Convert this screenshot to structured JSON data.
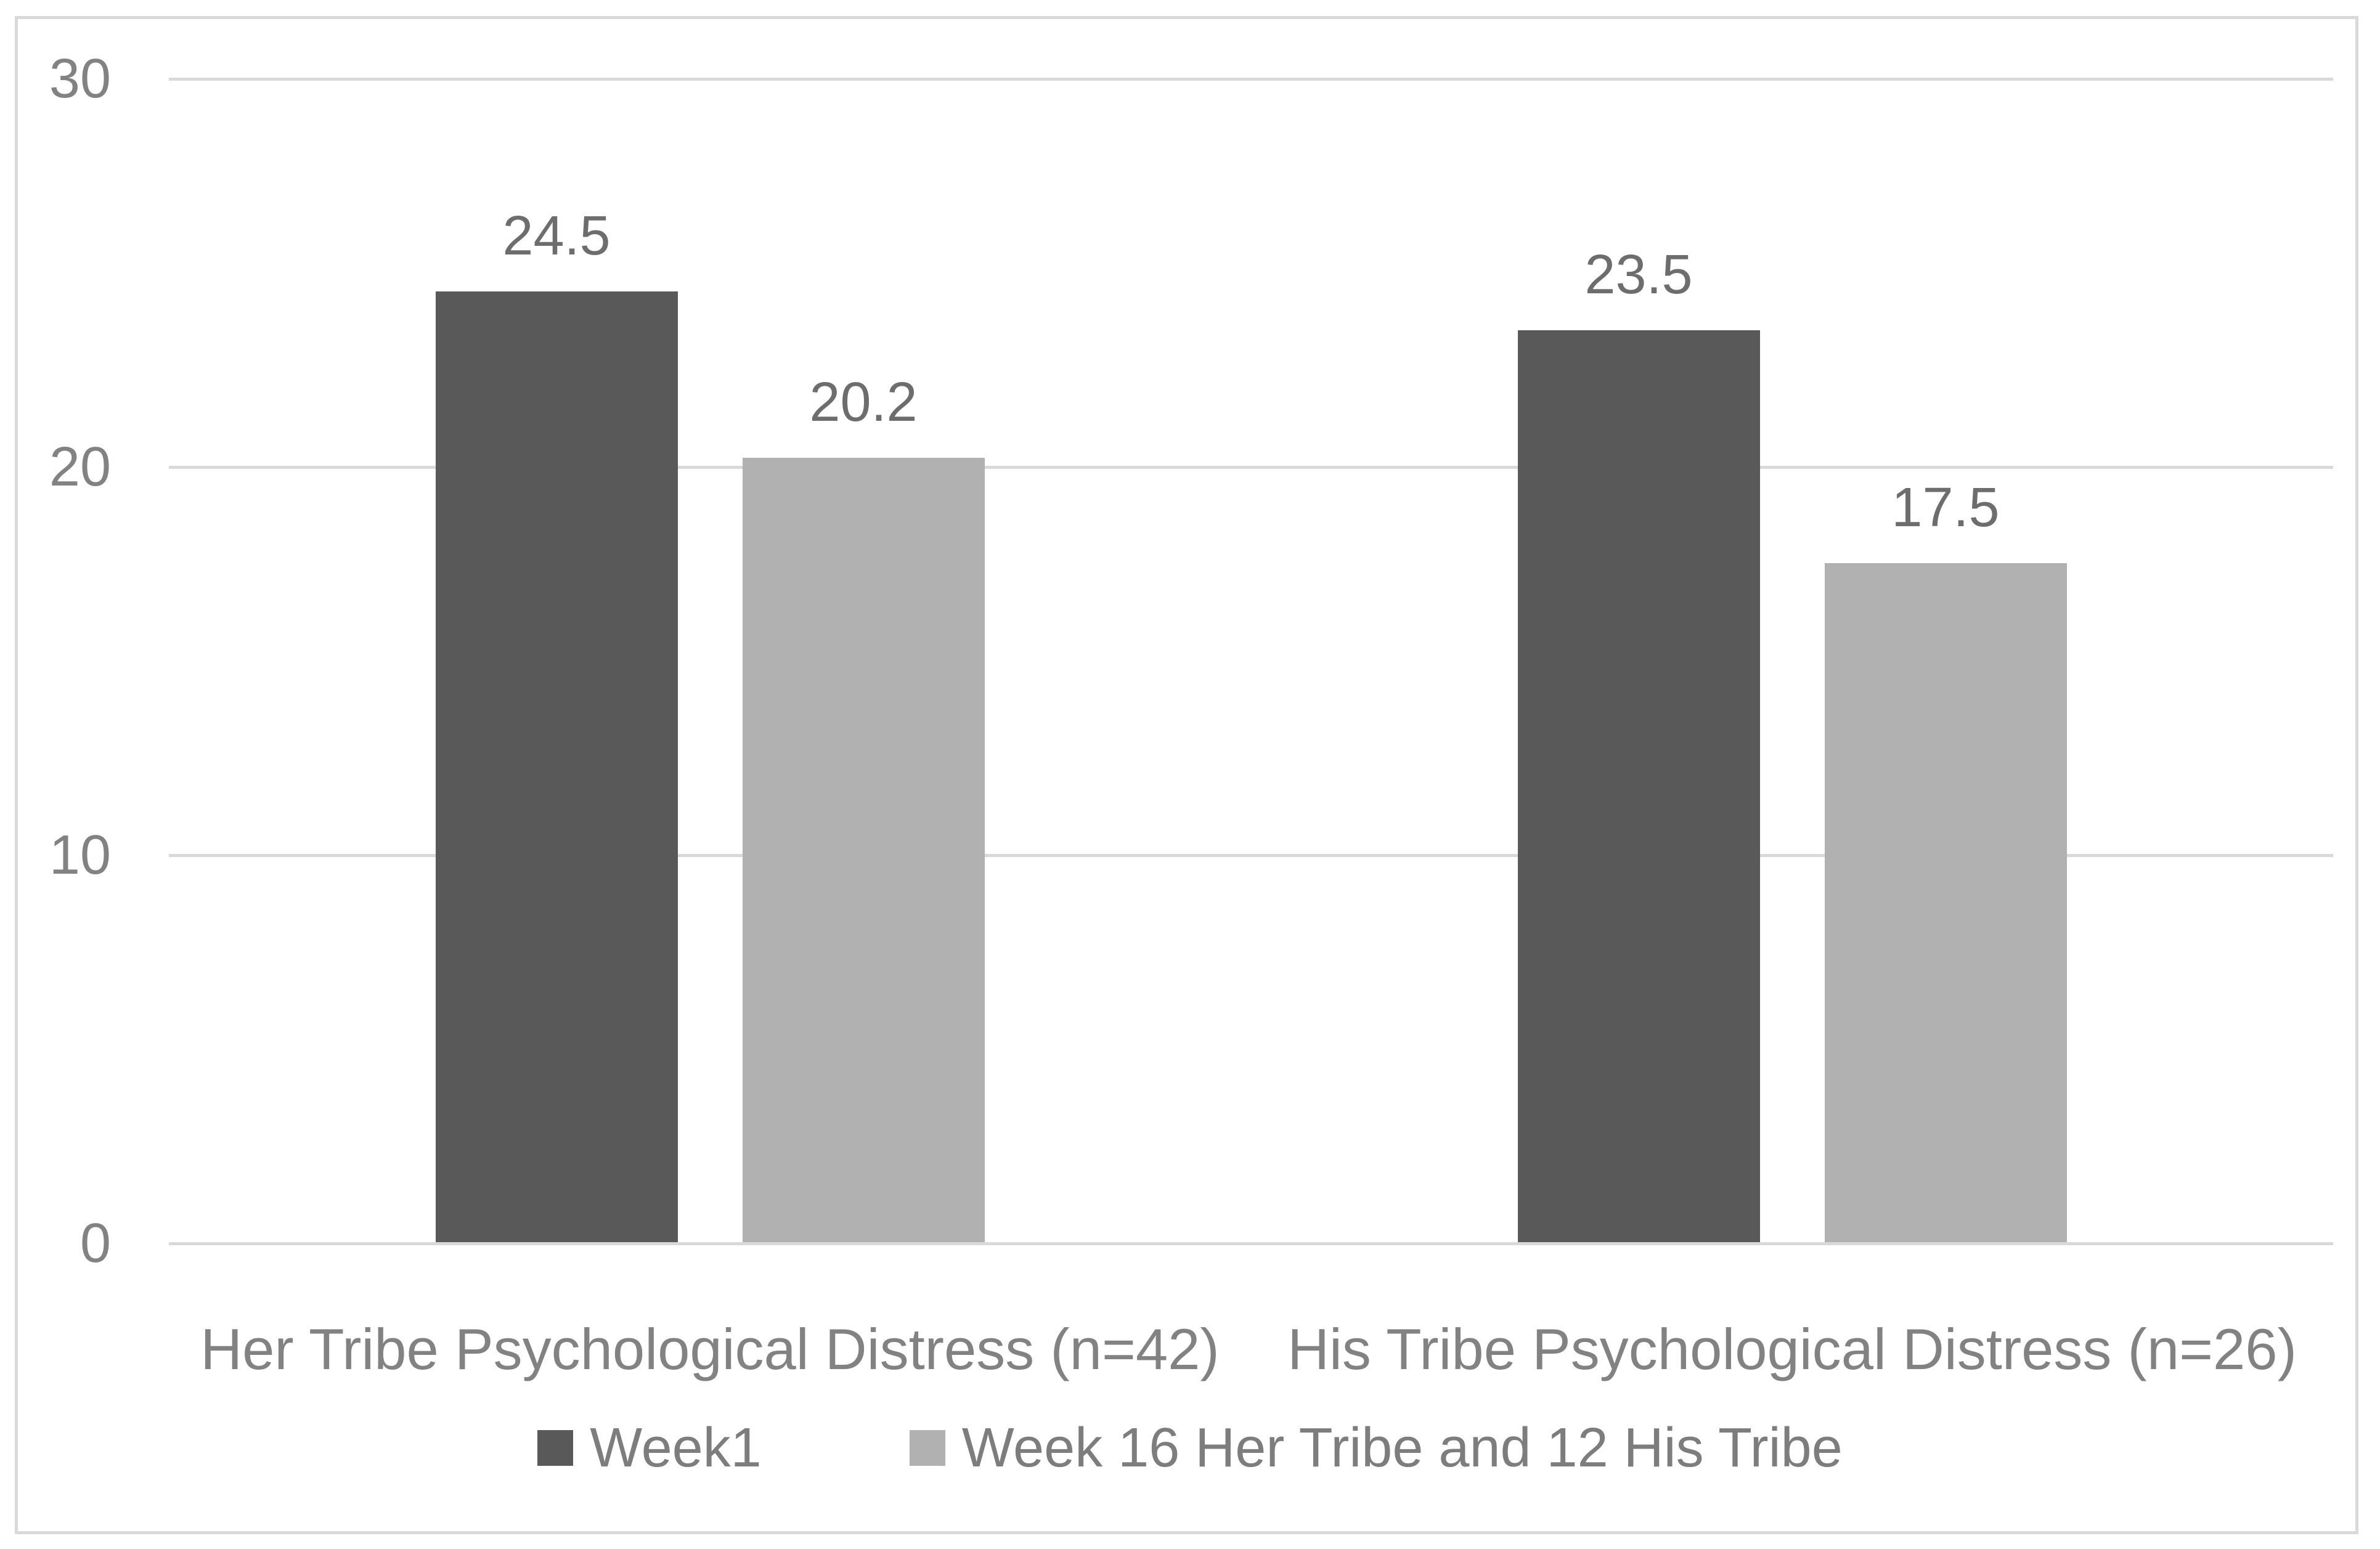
{
  "chart_data": {
    "type": "bar",
    "title": "",
    "xlabel": "",
    "ylabel": "",
    "categories": [
      "Her Tribe Psychological Distress (n=42)",
      "His Tribe Psychological Distress (n=26)"
    ],
    "series": [
      {
        "name": "Week1",
        "color": "#595959",
        "values": [
          24.5,
          23.5
        ]
      },
      {
        "name": "Week 16 Her Tribe and 12 His Tribe",
        "color": "#b1b1b1",
        "values": [
          20.2,
          17.5
        ]
      }
    ],
    "ylim": [
      0,
      30
    ],
    "yticks": [
      0,
      10,
      20,
      30
    ],
    "grid": true,
    "data_labels": true,
    "legend_position": "bottom"
  },
  "colors": {
    "background": "#ffffff",
    "frame_border": "#d9d9d9",
    "gridline": "#d9d9d9",
    "axis_text": "#828282",
    "data_label_text": "#6d6d6d",
    "legend_text": "#7d7d7d"
  }
}
